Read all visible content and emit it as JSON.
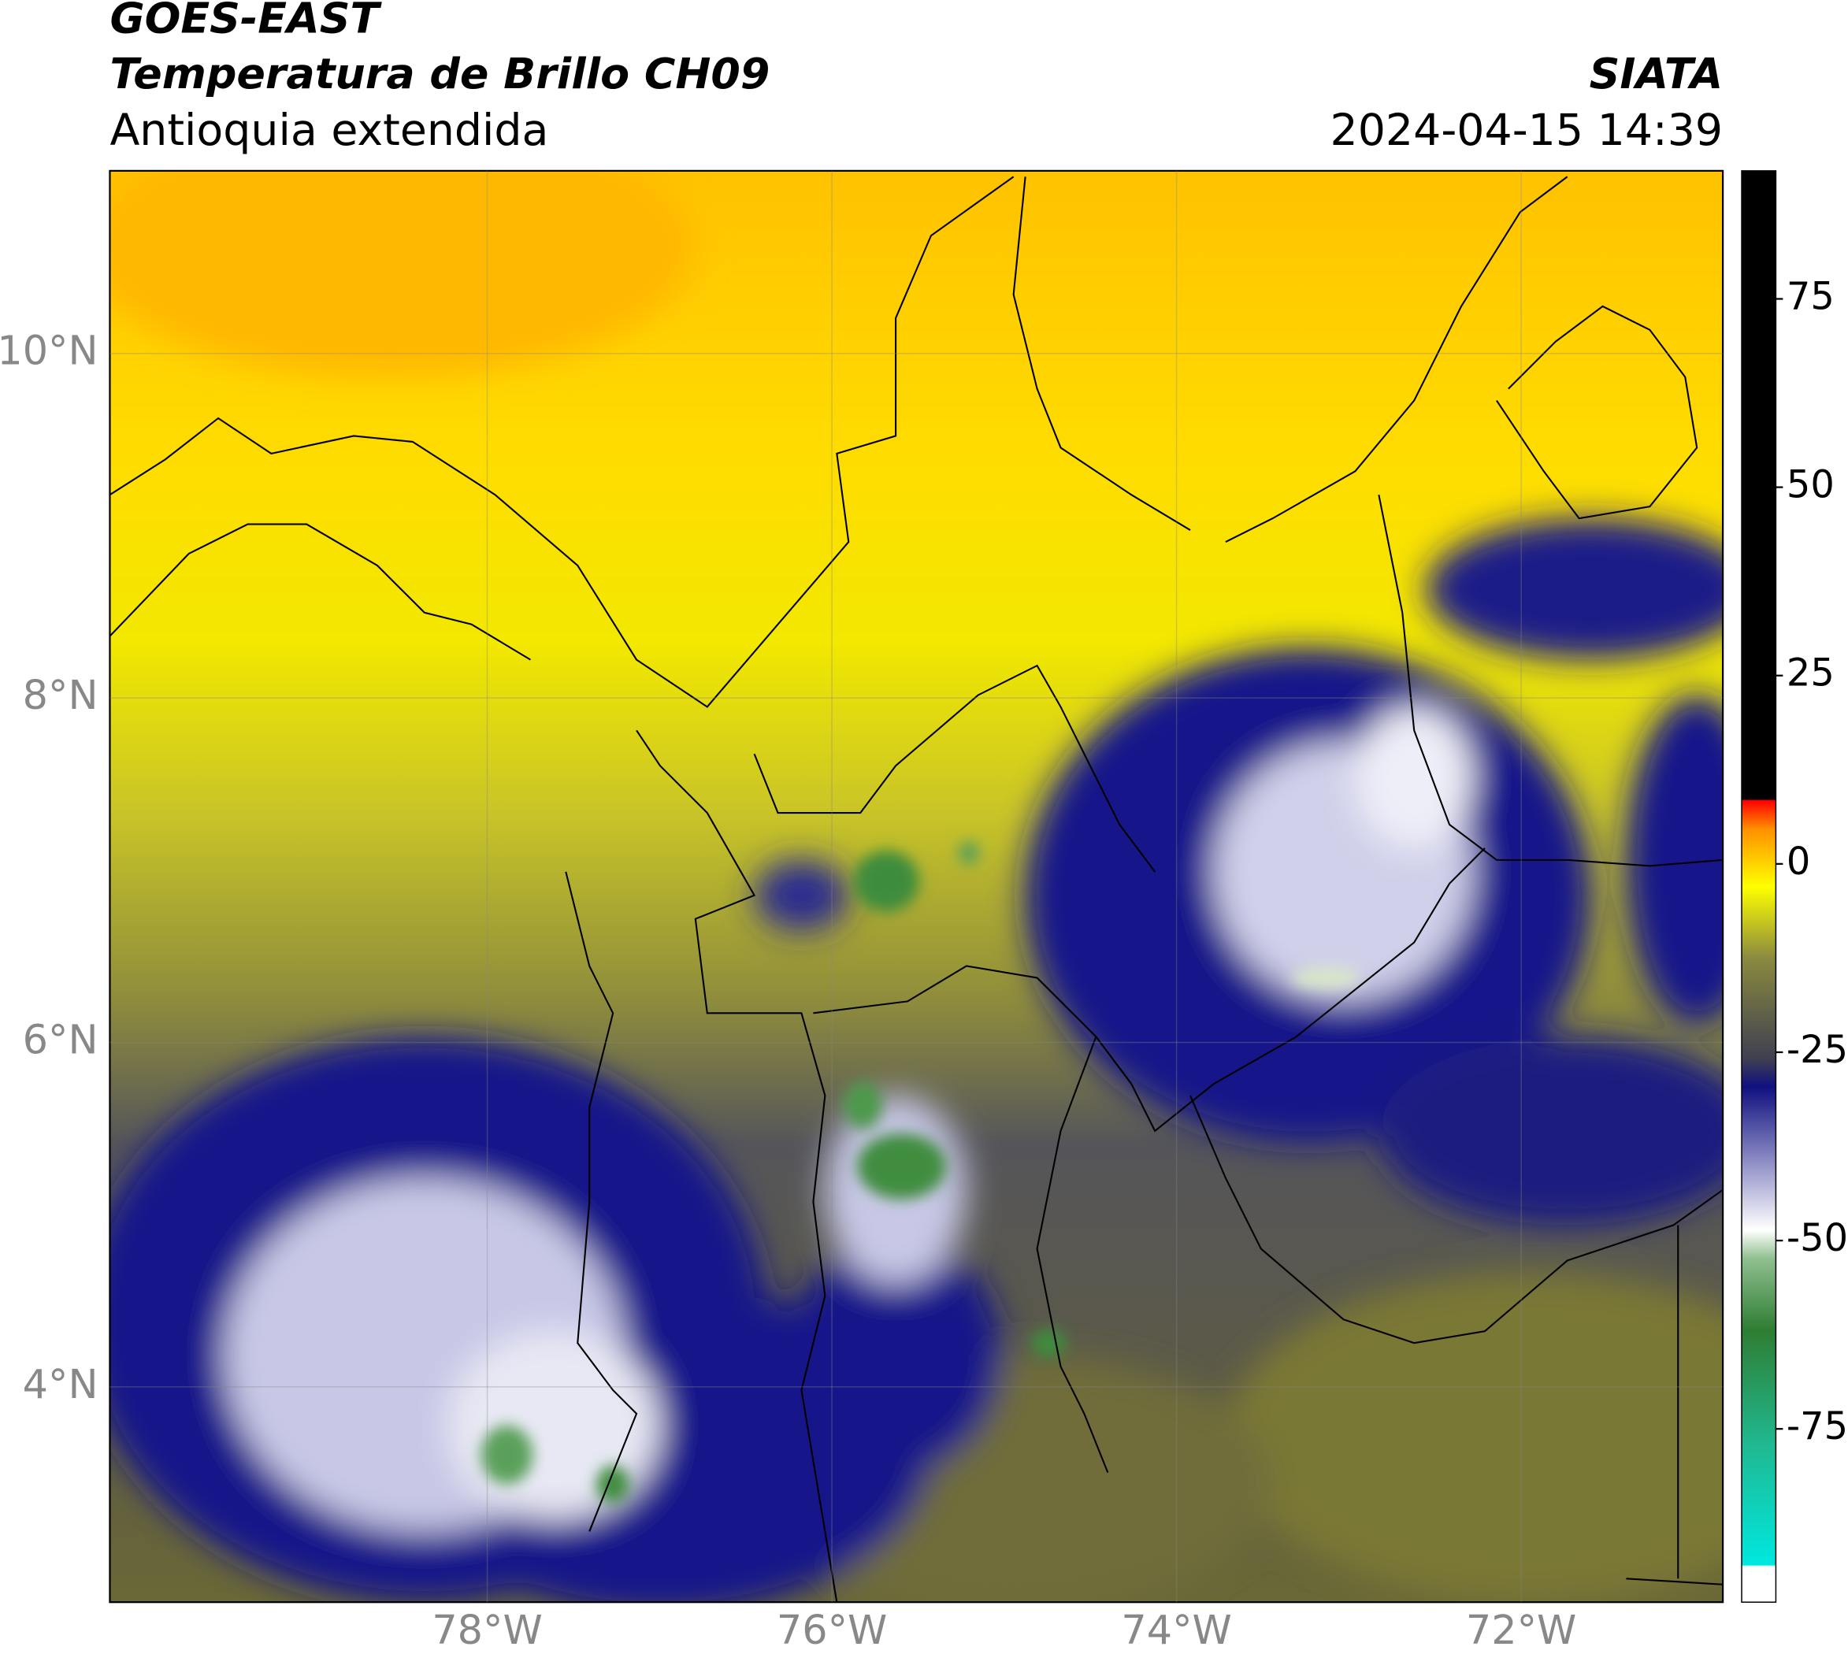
{
  "chart_data": {
    "type": "map",
    "title": "GOES-EAST",
    "subtitle": "Temperatura de Brillo CH09",
    "region": "Antioquia extendida",
    "source": "SIATA",
    "timestamp": "2024-04-15 14:39",
    "xlim": [
      -80.19,
      -70.83
    ],
    "ylim": [
      2.75,
      11.06
    ],
    "xticks": [
      {
        "value": -78,
        "label": "78°W"
      },
      {
        "value": -76,
        "label": "76°W"
      },
      {
        "value": -74,
        "label": "74°W"
      },
      {
        "value": -72,
        "label": "72°W"
      }
    ],
    "yticks": [
      {
        "value": 4,
        "label": "4°N"
      },
      {
        "value": 6,
        "label": "6°N"
      },
      {
        "value": 8,
        "label": "8°N"
      },
      {
        "value": 10,
        "label": "10°N"
      }
    ],
    "grid": true,
    "colorbar": {
      "lim": [
        -98,
        92
      ],
      "ticks": [
        -75,
        -50,
        -25,
        0,
        25,
        50,
        75
      ]
    }
  }
}
